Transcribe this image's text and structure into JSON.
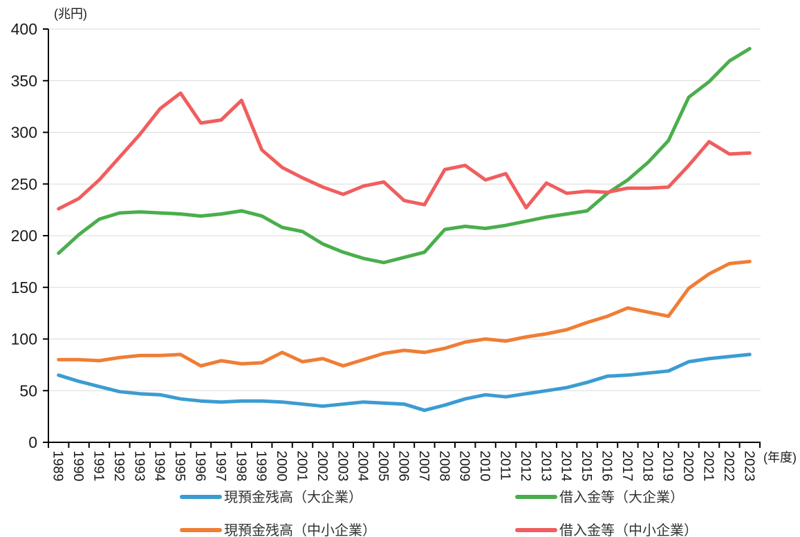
{
  "chart_data": {
    "type": "line",
    "title": "",
    "y_unit_label": "(兆円)",
    "x_unit_label": "(年度)",
    "ylim": [
      0,
      400
    ],
    "ytick_interval": 50,
    "yticks": [
      0,
      50,
      100,
      150,
      200,
      250,
      300,
      350,
      400
    ],
    "grid": "horizontal",
    "legend_position": "bottom-two-columns",
    "axis_color": "#000000",
    "grid_color": "#d9d9d9",
    "tick_text_color": "#1a1a1a",
    "legend_text_color": "#333333",
    "x_years": [
      "1989",
      "1990",
      "1991",
      "1992",
      "1993",
      "1994",
      "1995",
      "1996",
      "1997",
      "1998",
      "1999",
      "2000",
      "2001",
      "2002",
      "2003",
      "2004",
      "2005",
      "2006",
      "2007",
      "2008",
      "2009",
      "2010",
      "2011",
      "2012",
      "2013",
      "2014",
      "2015",
      "2016",
      "2017",
      "2018",
      "2019",
      "2020",
      "2021",
      "2022",
      "2023"
    ],
    "series": [
      {
        "name": "現預金残高（大企業）",
        "color": "#3b9cd2",
        "values": [
          65,
          59,
          54,
          49,
          47,
          46,
          42,
          40,
          39,
          40,
          40,
          39,
          37,
          35,
          37,
          39,
          38,
          37,
          31,
          36,
          42,
          46,
          44,
          47,
          50,
          53,
          58,
          64,
          65,
          67,
          69,
          78,
          81,
          83,
          85
        ]
      },
      {
        "name": "借入金等（大企業）",
        "color": "#4aae4c",
        "values": [
          183,
          201,
          216,
          222,
          223,
          222,
          221,
          219,
          221,
          224,
          219,
          208,
          204,
          192,
          184,
          178,
          174,
          179,
          184,
          206,
          209,
          207,
          210,
          214,
          218,
          221,
          224,
          241,
          254,
          271,
          292,
          334,
          349,
          369,
          381
        ]
      },
      {
        "name": "現預金残高（中小企業）",
        "color": "#ef7e35",
        "values": [
          80,
          80,
          79,
          82,
          84,
          84,
          85,
          74,
          79,
          76,
          77,
          87,
          78,
          81,
          74,
          80,
          86,
          89,
          87,
          91,
          97,
          100,
          98,
          102,
          105,
          109,
          116,
          122,
          130,
          126,
          122,
          149,
          163,
          173,
          175
        ]
      },
      {
        "name": "借入金等（中小企業）",
        "color": "#f05e5e",
        "values": [
          226,
          236,
          254,
          276,
          298,
          323,
          338,
          309,
          312,
          331,
          283,
          266,
          256,
          247,
          240,
          248,
          252,
          234,
          230,
          264,
          268,
          254,
          260,
          227,
          251,
          241,
          243,
          242,
          246,
          246,
          247,
          268,
          291,
          279,
          280
        ]
      }
    ]
  }
}
